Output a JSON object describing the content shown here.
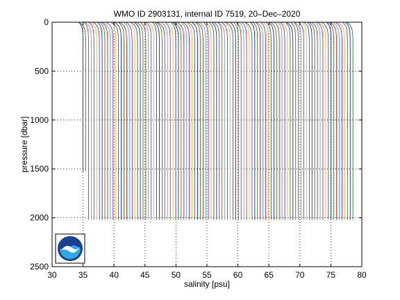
{
  "chart_data": {
    "type": "line",
    "title": "WMO ID 2903131, internal ID 7519, 20–Dec–2020",
    "xlabel": "salinity [psu]",
    "ylabel": "pressure [dbar]",
    "xlim": [
      30,
      80
    ],
    "ylim": [
      0,
      2500
    ],
    "y_reversed": true,
    "grid": true,
    "grid_style": "dotted",
    "xticks": [
      30,
      35,
      40,
      45,
      50,
      55,
      60,
      65,
      70,
      75,
      80
    ],
    "yticks": [
      0,
      500,
      1000,
      1500,
      2000,
      2500
    ],
    "series_description": "waterfall of consecutive salinity profiles, each offset in salinity",
    "profile_count": 100,
    "first_profile_offset_psu": 35.0,
    "offset_step_psu": 0.44,
    "surface_salinity_psu": -0.7,
    "deep_salinity_psu": 0.0,
    "max_pressure_dbar": 2020,
    "short_profiles": [
      {
        "index": 0,
        "max_pressure_dbar": 1530
      },
      {
        "index": 1,
        "max_pressure_dbar": 1520
      }
    ],
    "colors": [
      "#0000ff",
      "#008000",
      "#ff0000",
      "#00bfbf",
      "#bf00bf",
      "#bfbf00",
      "#404040"
    ]
  },
  "logo": {
    "text": "NOAA",
    "colors": {
      "dark": "#1c3f94",
      "light": "#30a8e6",
      "bird": "#ffffff"
    }
  }
}
